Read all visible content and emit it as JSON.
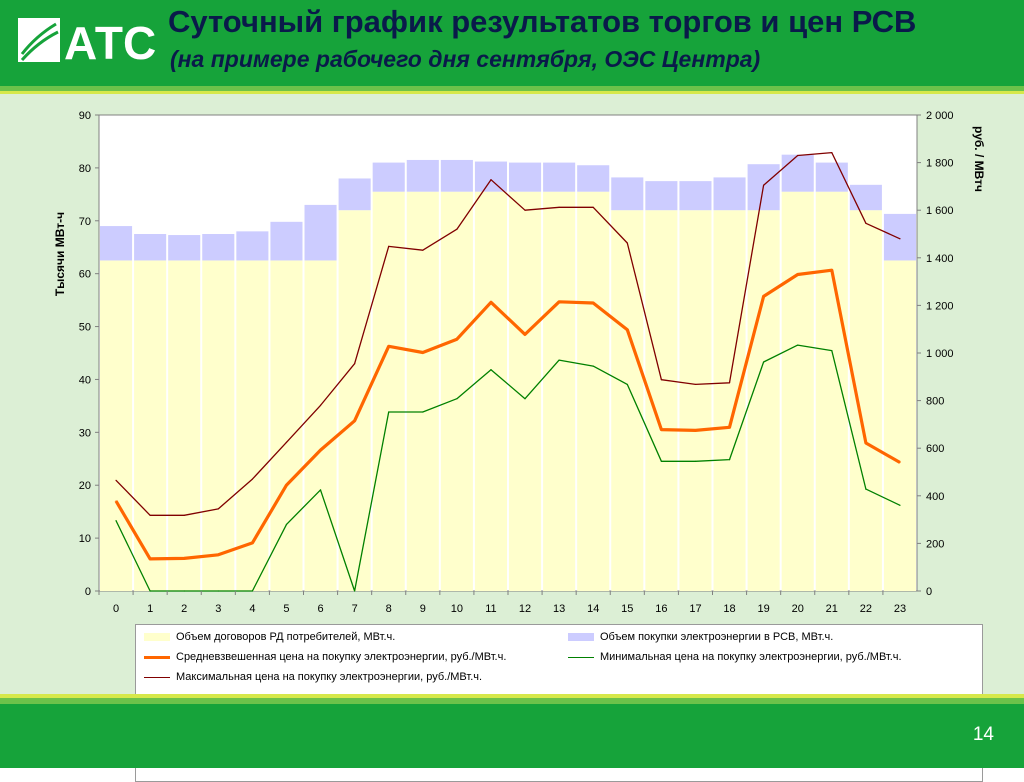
{
  "slide": {
    "logo_text": "АТС",
    "title": "Суточный график результатов торгов и цен РСВ",
    "subtitle": "(на примере рабочего дня сентября, ОЭС Центра)",
    "page_number": "14"
  },
  "colors": {
    "header_green": "#16a33a",
    "contracts_fill": "#ffffcc",
    "rsv_fill": "#ccccff",
    "avg_price": "#ff6600",
    "min_price": "#008000",
    "max_price": "#800000"
  },
  "chart_data": {
    "type": "bar",
    "categories": [
      "0",
      "1",
      "2",
      "3",
      "4",
      "5",
      "6",
      "7",
      "8",
      "9",
      "10",
      "11",
      "12",
      "13",
      "14",
      "15",
      "16",
      "17",
      "18",
      "19",
      "20",
      "21",
      "22",
      "23"
    ],
    "ylabel": "Тысячи МВт-ч",
    "y2label": "руб. / МВтч",
    "ylim": [
      0,
      90
    ],
    "y2lim": [
      0,
      2000
    ],
    "y_ticks": [
      "0",
      "10",
      "20",
      "30",
      "40",
      "50",
      "60",
      "70",
      "80",
      "90"
    ],
    "y2_ticks": [
      "0",
      "200",
      "400",
      "600",
      "800",
      "1 000",
      "1 200",
      "1 400",
      "1 600",
      "1 800",
      "2 000"
    ],
    "grid": false,
    "series": [
      {
        "name": "Объем договоров РД потребителей, МВт.ч.",
        "kind": "stacked-bar",
        "axis": "left",
        "values": [
          62.5,
          62.5,
          62.5,
          62.5,
          62.5,
          62.5,
          62.5,
          72,
          75.5,
          75.5,
          75.5,
          75.5,
          75.5,
          75.5,
          75.5,
          72,
          72,
          72,
          72,
          72,
          75.5,
          75.5,
          72,
          62.5
        ]
      },
      {
        "name": "Объем покупки электроэнергии в РСВ, МВт.ч.",
        "kind": "stacked-bar",
        "axis": "left",
        "values": [
          6.5,
          5,
          4.8,
          5,
          5.5,
          7.3,
          10.5,
          6,
          5.5,
          6,
          6,
          5.7,
          5.5,
          5.5,
          5,
          6.2,
          5.5,
          5.5,
          6.2,
          8.7,
          7,
          5.5,
          4.8,
          8.8
        ]
      },
      {
        "name": "Средневзвешенная цена на покупку электроэнергии, руб./МВт.ч.",
        "kind": "line",
        "axis": "right",
        "values": [
          378,
          135,
          137,
          152,
          202,
          445,
          592,
          715,
          1028,
          1002,
          1058,
          1213,
          1078,
          1215,
          1210,
          1098,
          678,
          675,
          688,
          1238,
          1330,
          1348,
          622,
          540
        ]
      },
      {
        "name": "Минимальная цена на покупку электроэнергии, руб./МВт.ч.",
        "kind": "line",
        "axis": "right",
        "values": [
          296,
          0,
          0,
          0,
          0,
          280,
          425,
          0,
          752,
          752,
          808,
          930,
          808,
          970,
          945,
          868,
          545,
          545,
          552,
          962,
          1033,
          1010,
          428,
          360
        ]
      },
      {
        "name": "Максимальная цена на покупку электроэнергии, руб./МВт.ч.",
        "kind": "line",
        "axis": "right",
        "values": [
          465,
          318,
          318,
          345,
          470,
          625,
          780,
          955,
          1448,
          1432,
          1520,
          1728,
          1600,
          1612,
          1612,
          1462,
          888,
          868,
          875,
          1705,
          1830,
          1842,
          1545,
          1480
        ]
      }
    ]
  }
}
